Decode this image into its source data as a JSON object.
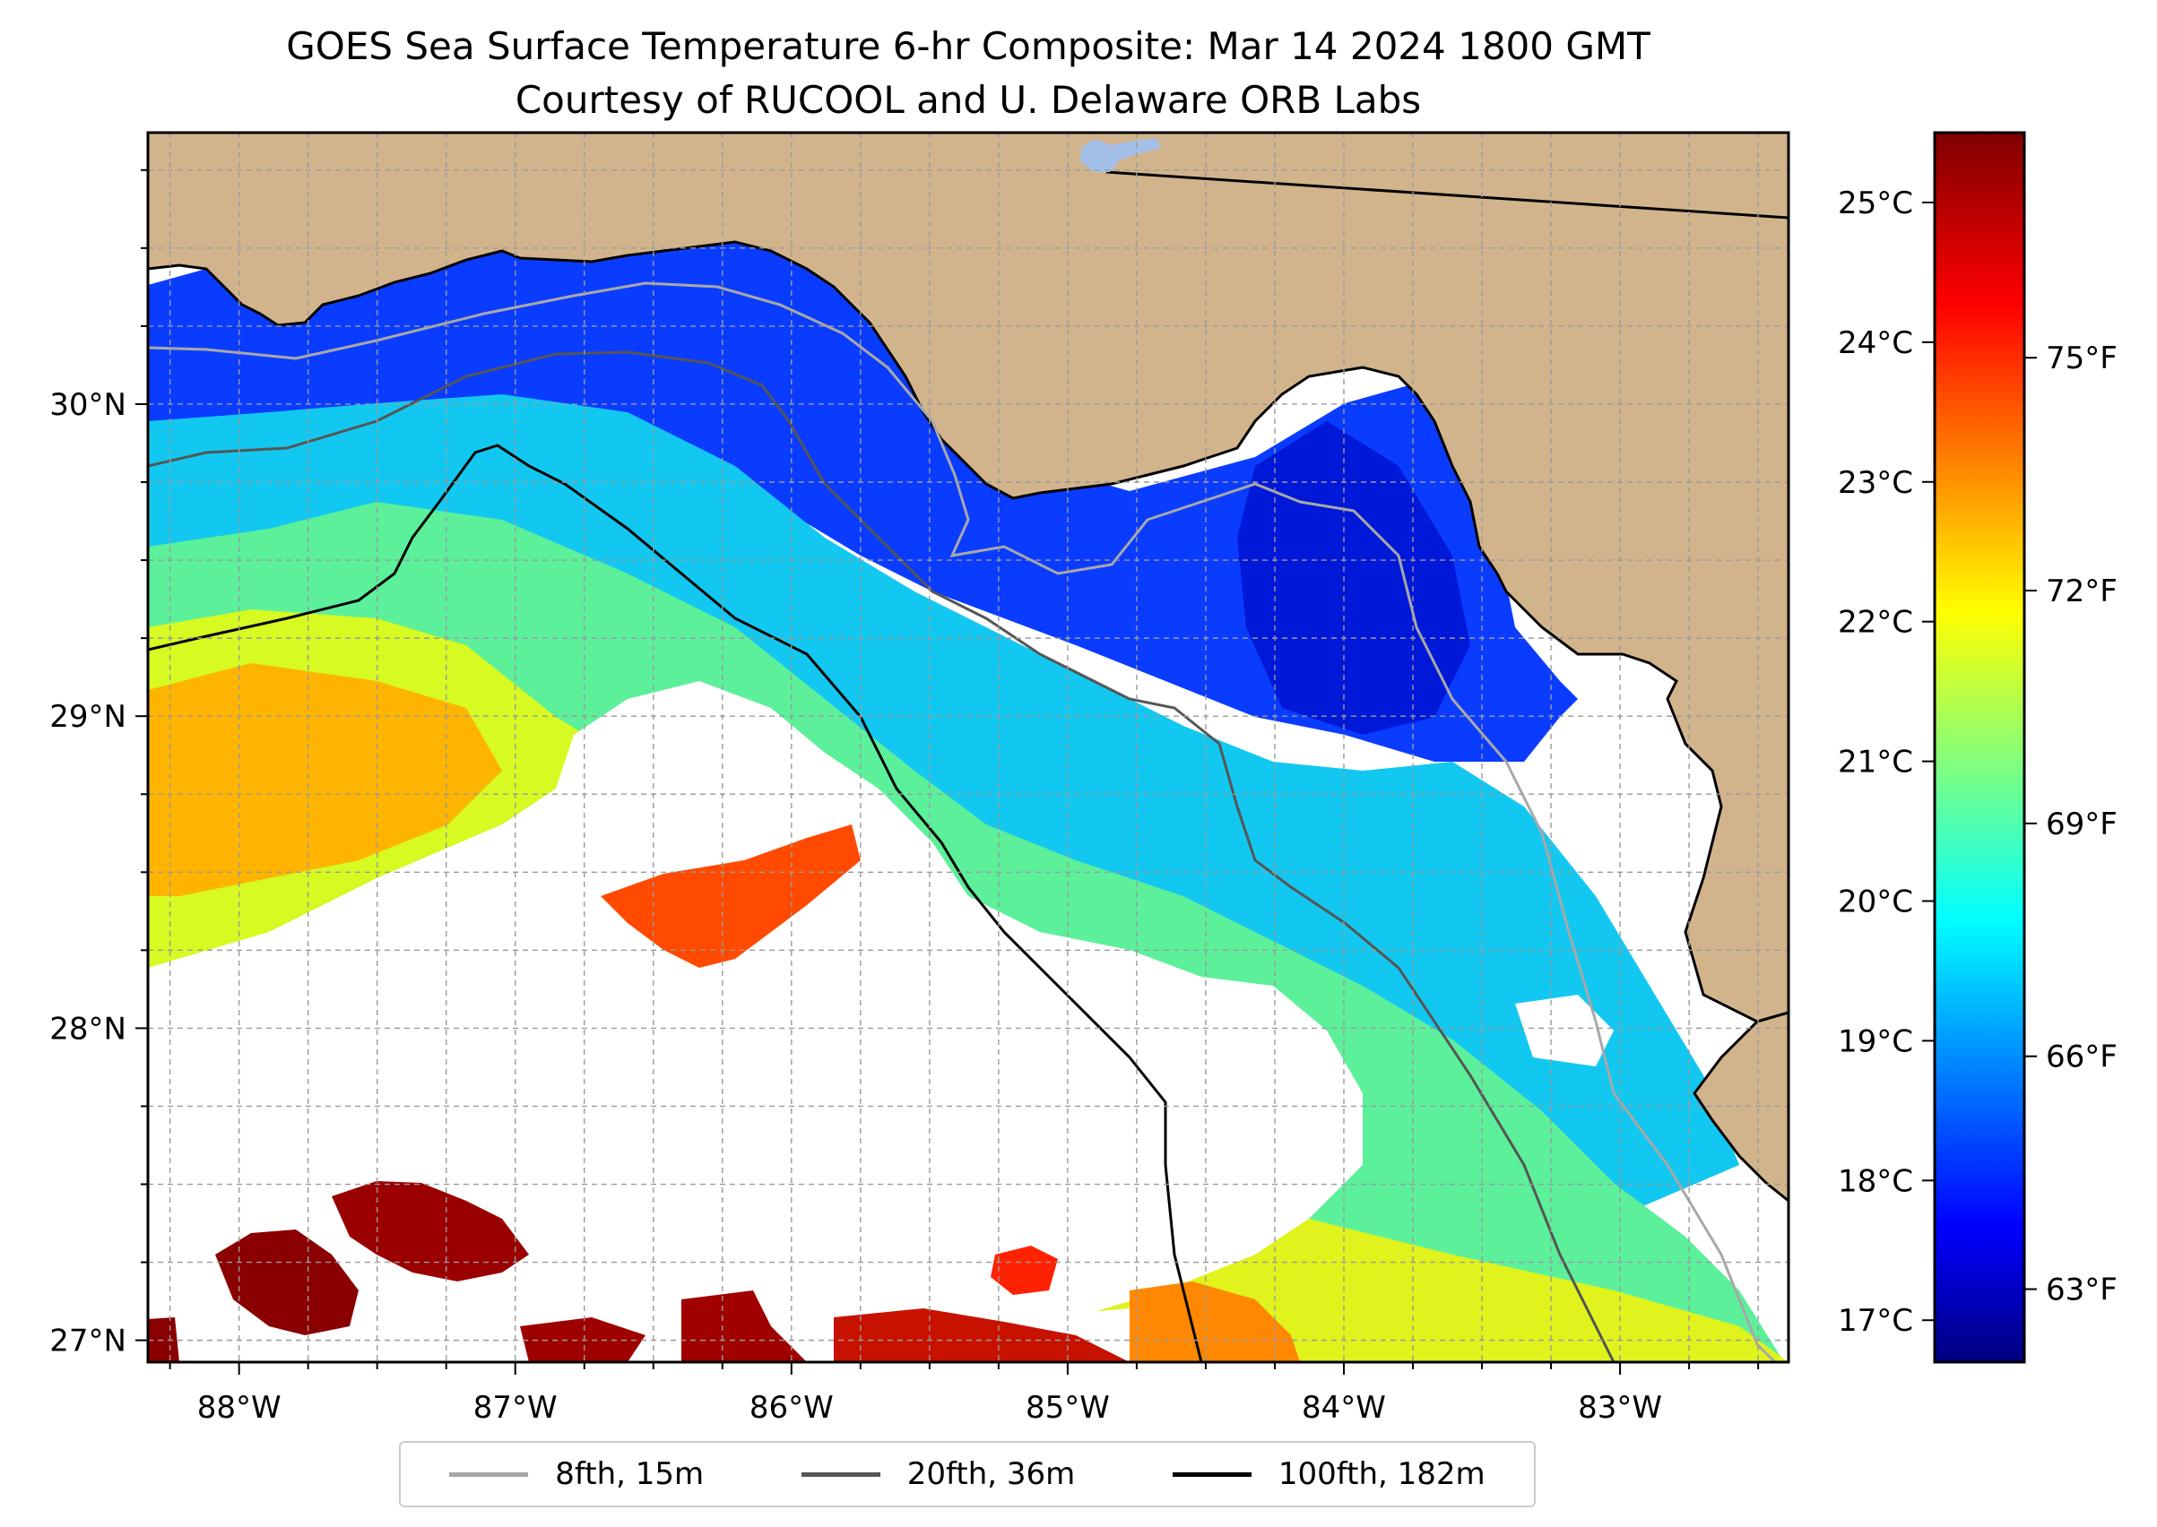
{
  "title": {
    "line1": "GOES Sea Surface Temperature 6-hr Composite: Mar 14 2024 1800 GMT",
    "line2": "Courtesy of RUCOOL and U. Delaware ORB Labs"
  },
  "map": {
    "lon_range": [
      -88.33,
      -82.39
    ],
    "lat_range": [
      26.93,
      30.87
    ],
    "lon_ticks": [
      {
        "value": -88,
        "label": "88°W"
      },
      {
        "value": -87,
        "label": "87°W"
      },
      {
        "value": -86,
        "label": "86°W"
      },
      {
        "value": -85,
        "label": "85°W"
      },
      {
        "value": -84,
        "label": "84°W"
      },
      {
        "value": -83,
        "label": "83°W"
      }
    ],
    "lat_ticks": [
      {
        "value": 27,
        "label": "27°N"
      },
      {
        "value": 28,
        "label": "28°N"
      },
      {
        "value": 29,
        "label": "29°N"
      },
      {
        "value": 30,
        "label": "30°N"
      }
    ],
    "grid": "dashed",
    "land_color": "#d2b48c",
    "no_data_color": "#ffffff",
    "coastline_color": "#000000"
  },
  "colorbar": {
    "colormap": "jet",
    "range_c": [
      16.7,
      25.5
    ],
    "celsius_ticks": [
      {
        "value": 17,
        "label": "17°C"
      },
      {
        "value": 18,
        "label": "18°C"
      },
      {
        "value": 19,
        "label": "19°C"
      },
      {
        "value": 20,
        "label": "20°C"
      },
      {
        "value": 21,
        "label": "21°C"
      },
      {
        "value": 22,
        "label": "22°C"
      },
      {
        "value": 23,
        "label": "23°C"
      },
      {
        "value": 24,
        "label": "24°C"
      },
      {
        "value": 25,
        "label": "25°C"
      }
    ],
    "fahrenheit_ticks": [
      {
        "value": 63,
        "label": "63°F"
      },
      {
        "value": 66,
        "label": "66°F"
      },
      {
        "value": 69,
        "label": "69°F"
      },
      {
        "value": 72,
        "label": "72°F"
      },
      {
        "value": 75,
        "label": "75°F"
      }
    ]
  },
  "legend": {
    "placement": "bottom-center",
    "items": [
      {
        "label": "8fth, 15m",
        "color": "#a8a8a8"
      },
      {
        "label": "20fth, 36m",
        "color": "#555555"
      },
      {
        "label": "100fth, 182m",
        "color": "#000000"
      }
    ]
  }
}
